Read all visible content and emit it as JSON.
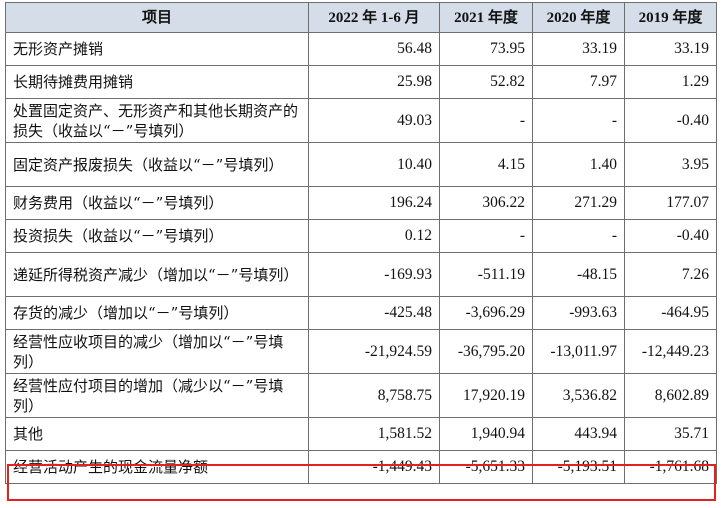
{
  "table": {
    "headers": [
      "项目",
      "2022 年 1-6 月",
      "2021 年度",
      "2020 年度",
      "2019 年度"
    ],
    "rows": [
      {
        "label": "无形资产摊销",
        "values": [
          "56.48",
          "73.95",
          "33.19",
          "33.19"
        ]
      },
      {
        "label": "长期待摊费用摊销",
        "values": [
          "25.98",
          "52.82",
          "7.97",
          "1.29"
        ]
      },
      {
        "label": "处置固定资产、无形资产和其他长期资产的损失（收益以“－”号填列）",
        "values": [
          "49.03",
          "-",
          "-",
          "-0.40"
        ]
      },
      {
        "label": "固定资产报废损失（收益以“－”号填列）",
        "values": [
          "10.40",
          "4.15",
          "1.40",
          "3.95"
        ]
      },
      {
        "label": "财务费用（收益以“－”号填列）",
        "values": [
          "196.24",
          "306.22",
          "271.29",
          "177.07"
        ]
      },
      {
        "label": "投资损失（收益以“－”号填列）",
        "values": [
          "0.12",
          "-",
          "-",
          "-0.40"
        ]
      },
      {
        "label": "递延所得税资产减少（增加以“－”号填列）",
        "values": [
          "-169.93",
          "-511.19",
          "-48.15",
          "7.26"
        ]
      },
      {
        "label": "存货的减少（增加以“－”号填列）",
        "values": [
          "-425.48",
          "-3,696.29",
          "-993.63",
          "-464.95"
        ]
      },
      {
        "label": "经营性应收项目的减少（增加以“－”号填列）",
        "values": [
          "-21,924.59",
          "-36,795.20",
          "-13,011.97",
          "-12,449.23"
        ]
      },
      {
        "label": "经营性应付项目的增加（减少以“－”号填列）",
        "values": [
          "8,758.75",
          "17,920.19",
          "3,536.82",
          "8,602.89"
        ]
      },
      {
        "label": "其他",
        "values": [
          "1,581.52",
          "1,940.94",
          "443.94",
          "35.71"
        ]
      },
      {
        "label": "经营活动产生的现金流量净额",
        "values": [
          "-1,449.43",
          "-5,651.33",
          "-5,193.51",
          "-1,761.68"
        ]
      }
    ]
  },
  "colors": {
    "header_bg": "#d4dde8",
    "highlight_border": "#e3211f",
    "grid": "#6f6f6f"
  }
}
